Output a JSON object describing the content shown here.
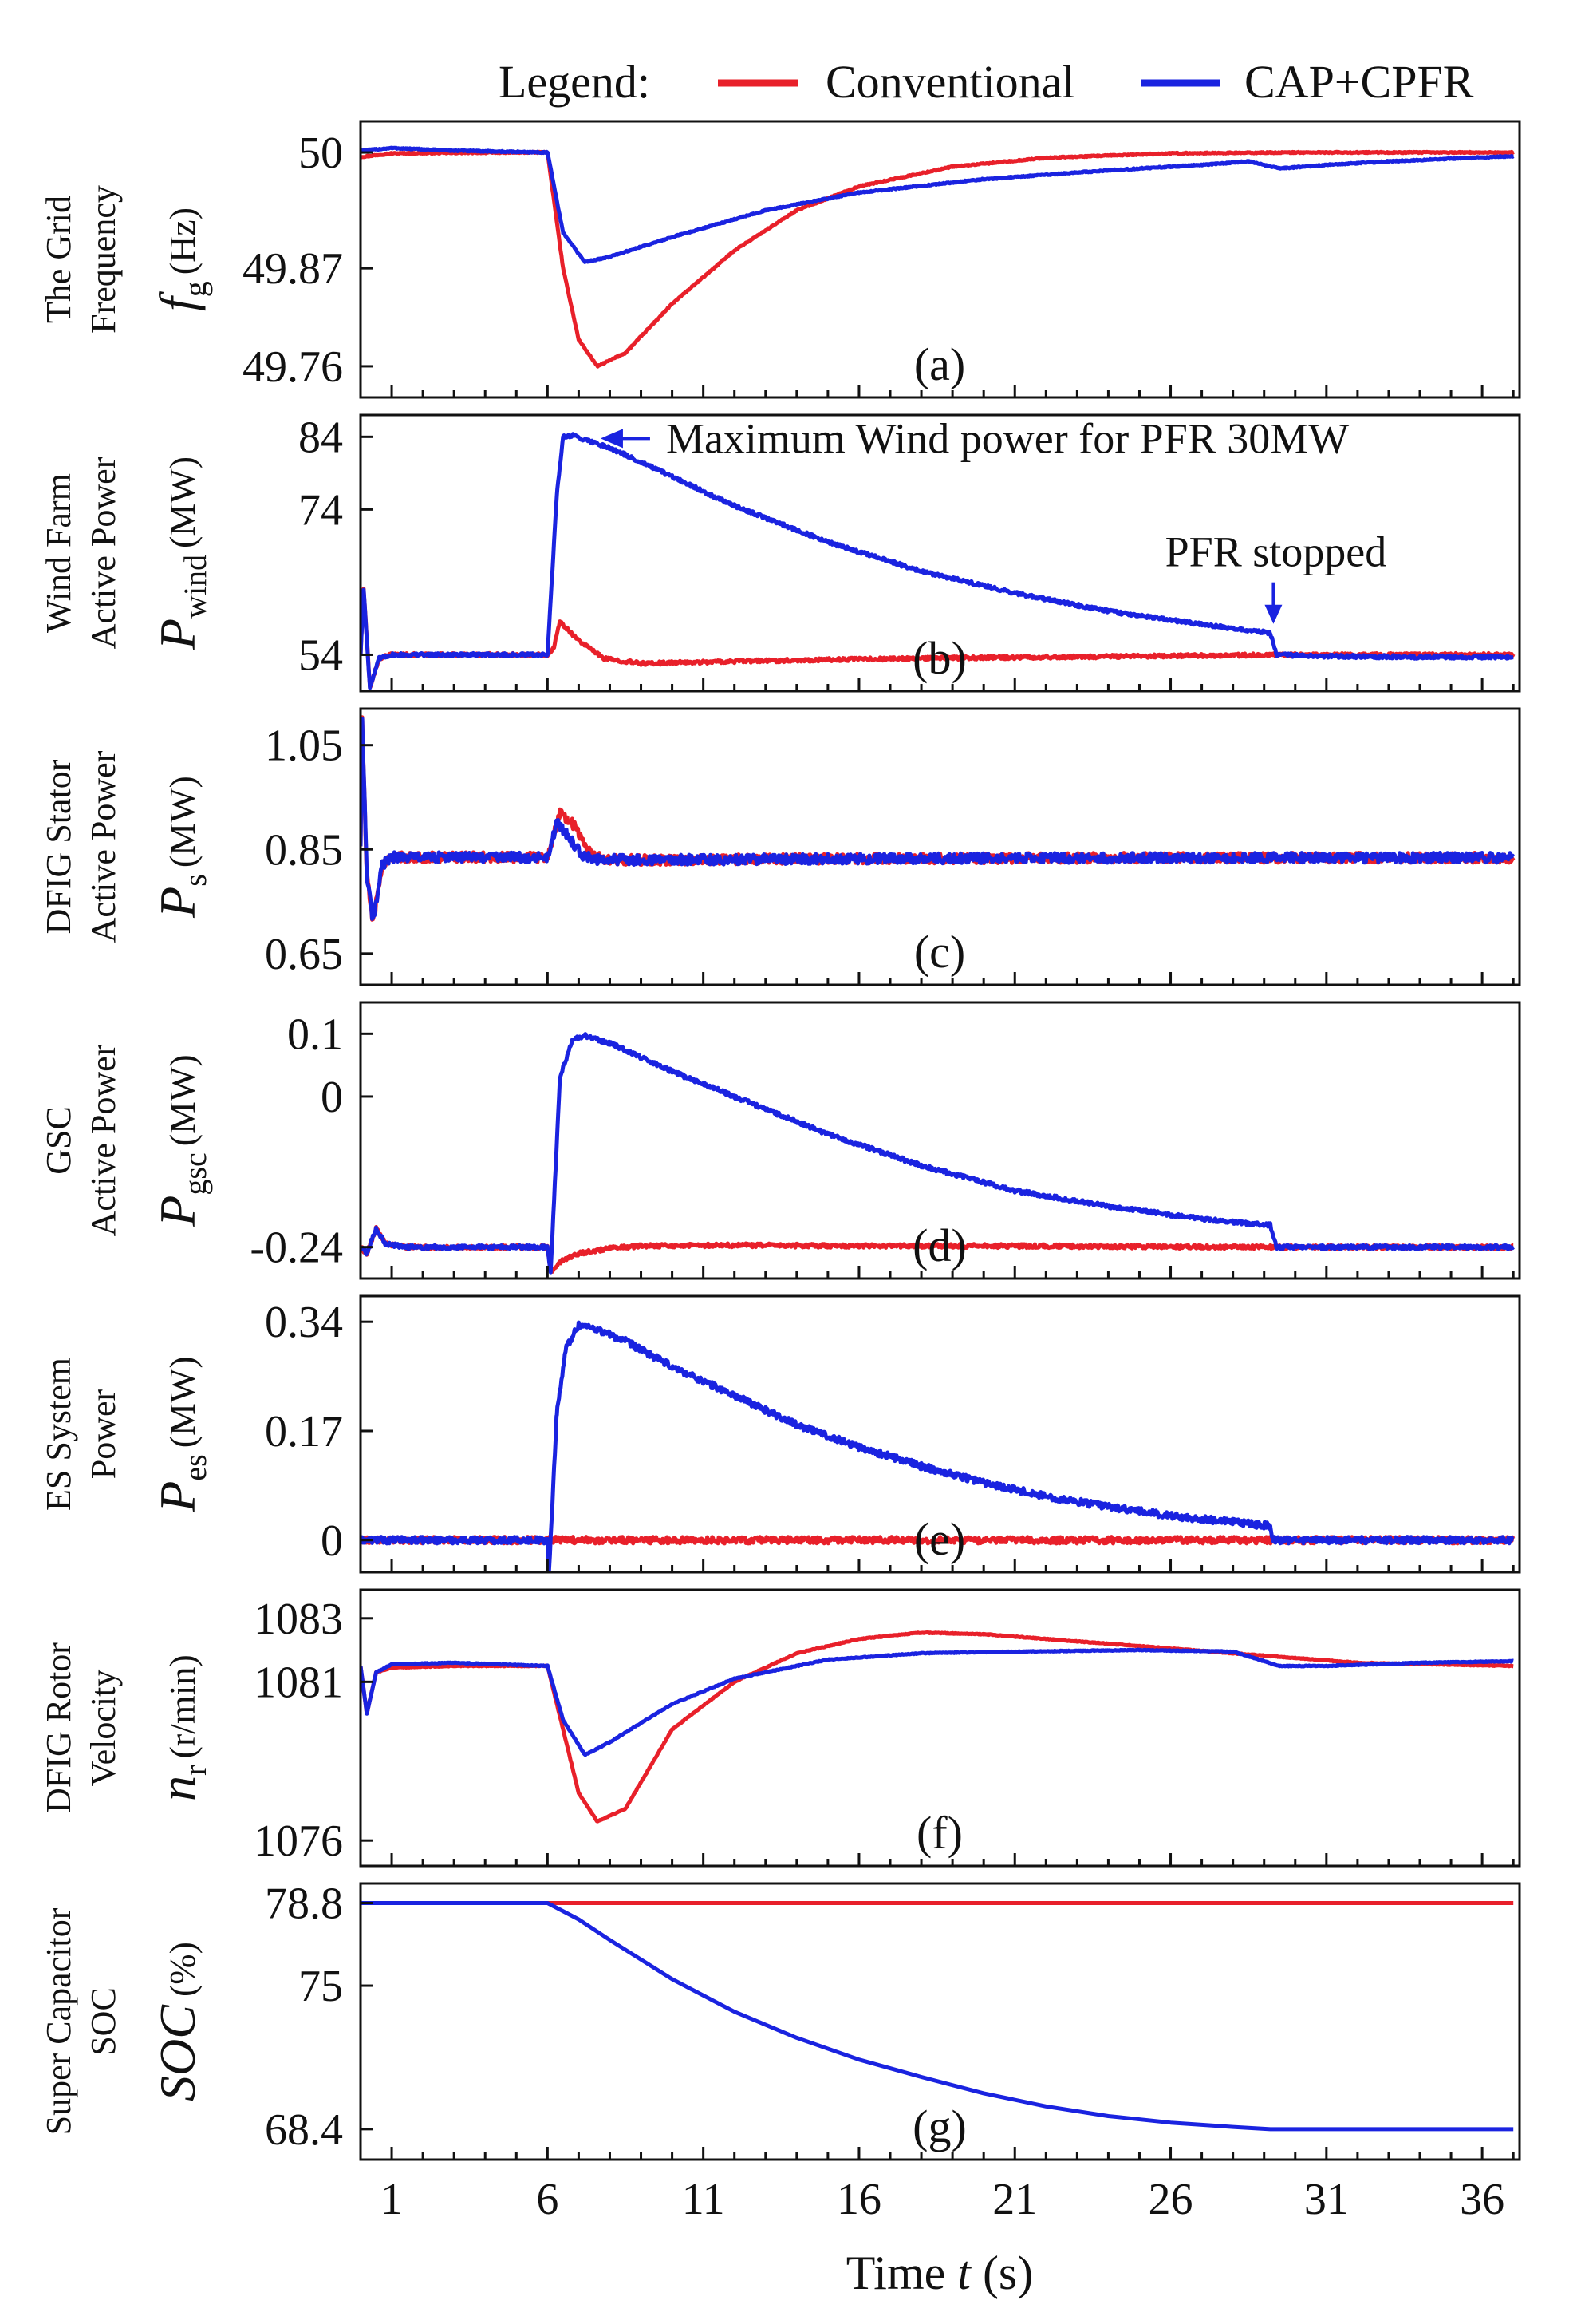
{
  "legend": {
    "title": "Legend:",
    "series": [
      {
        "name": "Conventional",
        "color": "#e8202a"
      },
      {
        "name": "CAP+CPFR",
        "color": "#1a23e0"
      }
    ]
  },
  "x_axis": {
    "label": "Time t (s)",
    "label_main": "Time ",
    "label_sym": "t",
    "label_unit": " (s)",
    "ticks": [
      1,
      6,
      11,
      16,
      21,
      26,
      31,
      36
    ],
    "range": [
      0,
      37.2
    ]
  },
  "chart_data": [
    {
      "id": "a",
      "type": "line",
      "tag": "(a)",
      "title_lines": [
        "The Grid",
        "Frequency"
      ],
      "symbol": "f",
      "subscript": "g",
      "unit": "(Hz)",
      "yticks": [
        49.76,
        49.87,
        50
      ],
      "ylim": [
        49.725,
        50.035
      ],
      "series": [
        {
          "name": "Conventional",
          "x": [
            0,
            1,
            5,
            6,
            6.5,
            7,
            7.6,
            8.5,
            10,
            12,
            14,
            16,
            19,
            22,
            26,
            30,
            34,
            37
          ],
          "values": [
            49.995,
            49.999,
            50.0,
            50.0,
            49.87,
            49.79,
            49.76,
            49.775,
            49.83,
            49.89,
            49.935,
            49.962,
            49.984,
            49.994,
            49.999,
            50.0,
            50.0,
            50.0
          ]
        },
        {
          "name": "CAP+CPFR",
          "x": [
            0,
            1,
            3,
            6,
            6.5,
            7.2,
            8,
            10,
            13,
            16,
            20,
            24,
            27,
            28.5,
            29.5,
            31,
            33,
            35,
            37
          ],
          "values": [
            50.002,
            50.005,
            50.002,
            50.0,
            49.91,
            49.877,
            49.883,
            49.905,
            49.935,
            49.955,
            49.97,
            49.98,
            49.986,
            49.99,
            49.982,
            49.986,
            49.99,
            49.993,
            49.996
          ]
        }
      ]
    },
    {
      "id": "b",
      "type": "line",
      "tag": "(b)",
      "title_lines": [
        "Wind Farm",
        "Active Power"
      ],
      "symbol": "P",
      "subscript": "wind",
      "unit": "(MW)",
      "yticks": [
        54,
        74,
        84
      ],
      "ylim": [
        49,
        87
      ],
      "annotations": [
        "Maximum Wind power for PFR 30MW",
        "PFR stopped"
      ],
      "series": [
        {
          "name": "Conventional",
          "x": [
            0,
            0.1,
            0.3,
            0.6,
            1,
            3,
            6,
            6.2,
            6.4,
            7,
            7.8,
            9,
            12,
            16,
            20,
            25,
            29.5,
            33,
            37
          ],
          "values": [
            54,
            63,
            49.5,
            53.5,
            54,
            54,
            54,
            55,
            58.5,
            56,
            53.5,
            52.8,
            53.1,
            53.4,
            53.6,
            53.8,
            54,
            54,
            54
          ]
        },
        {
          "name": "CAP+CPFR",
          "x": [
            0,
            0.1,
            0.3,
            0.6,
            1,
            3,
            6,
            6.3,
            6.5,
            6.8,
            8,
            10,
            12,
            15,
            18,
            21,
            24,
            27,
            29.2,
            29.4,
            31,
            34,
            37
          ],
          "values": [
            54,
            63,
            49.5,
            53.5,
            54,
            54,
            54,
            76,
            84,
            84.2,
            82.5,
            78.5,
            74.5,
            69.5,
            65.5,
            62.5,
            60,
            58.2,
            57,
            54,
            53.8,
            53.7,
            53.7
          ]
        }
      ]
    },
    {
      "id": "c",
      "type": "line",
      "tag": "(c)",
      "title_lines": [
        "DFIG Stator",
        "Active Power"
      ],
      "symbol": "P",
      "subscript": "s",
      "unit": "(MW)",
      "yticks": [
        0.65,
        0.85,
        1.05
      ],
      "ylim": [
        0.59,
        1.12
      ],
      "series": [
        {
          "name": "Conventional",
          "x": [
            0,
            0.05,
            0.2,
            0.4,
            0.7,
            1,
            3,
            6,
            6.4,
            6.8,
            7.4,
            8,
            10,
            15,
            20,
            25,
            30,
            37
          ],
          "values": [
            0.86,
            1.1,
            0.8,
            0.71,
            0.82,
            0.835,
            0.835,
            0.835,
            0.92,
            0.9,
            0.84,
            0.83,
            0.83,
            0.832,
            0.833,
            0.834,
            0.834,
            0.834
          ]
        },
        {
          "name": "CAP+CPFR",
          "x": [
            0,
            0.05,
            0.2,
            0.4,
            0.7,
            1,
            3,
            6,
            6.3,
            6.6,
            7.1,
            7.6,
            8.5,
            10,
            15,
            20,
            25,
            30,
            37
          ],
          "values": [
            0.86,
            1.1,
            0.8,
            0.71,
            0.82,
            0.835,
            0.835,
            0.835,
            0.9,
            0.88,
            0.84,
            0.83,
            0.83,
            0.83,
            0.832,
            0.833,
            0.834,
            0.834,
            0.834
          ]
        }
      ]
    },
    {
      "id": "d",
      "type": "line",
      "tag": "(d)",
      "title_lines": [
        "GSC",
        "Active Power"
      ],
      "symbol": "P",
      "subscript": "gsc",
      "unit": "(MW)",
      "yticks": [
        -0.24,
        0,
        0.1
      ],
      "ylim": [
        -0.29,
        0.15
      ],
      "series": [
        {
          "name": "Conventional",
          "x": [
            0,
            0.2,
            0.5,
            0.8,
            1.5,
            3,
            6,
            6.1,
            6.5,
            7,
            8,
            9,
            12,
            16,
            20,
            25,
            29.5,
            33,
            37
          ],
          "values": [
            -0.24,
            -0.25,
            -0.21,
            -0.235,
            -0.24,
            -0.24,
            -0.24,
            -0.28,
            -0.26,
            -0.25,
            -0.242,
            -0.238,
            -0.237,
            -0.238,
            -0.238,
            -0.239,
            -0.24,
            -0.24,
            -0.24
          ]
        },
        {
          "name": "CAP+CPFR",
          "x": [
            0,
            0.2,
            0.5,
            0.8,
            1.5,
            3,
            6,
            6.1,
            6.4,
            6.8,
            7.2,
            8,
            10,
            12,
            15,
            18,
            21,
            24,
            27,
            29.2,
            29.4,
            31,
            34,
            37
          ],
          "values": [
            -0.24,
            -0.25,
            -0.21,
            -0.235,
            -0.24,
            -0.24,
            -0.24,
            -0.28,
            0.03,
            0.09,
            0.097,
            0.085,
            0.04,
            0.0,
            -0.06,
            -0.11,
            -0.15,
            -0.175,
            -0.195,
            -0.205,
            -0.24,
            -0.24,
            -0.24,
            -0.24
          ]
        }
      ]
    },
    {
      "id": "e",
      "type": "line",
      "tag": "(e)",
      "title_lines": [
        "ES System",
        "Power"
      ],
      "symbol": "P",
      "subscript": "es",
      "unit": "(MW)",
      "yticks": [
        0,
        0.17,
        0.34
      ],
      "ylim": [
        -0.05,
        0.38
      ],
      "series": [
        {
          "name": "Conventional",
          "x": [
            0,
            37
          ],
          "values": [
            0,
            0
          ]
        },
        {
          "name": "CAP+CPFR",
          "x": [
            0,
            6,
            6.05,
            6.3,
            6.6,
            7,
            7.5,
            8.5,
            10,
            12,
            14,
            16,
            18,
            20,
            22,
            24,
            26,
            28,
            29.2,
            29.3,
            37
          ],
          "values": [
            0,
            0,
            -0.05,
            0.2,
            0.3,
            0.335,
            0.33,
            0.31,
            0.27,
            0.225,
            0.18,
            0.145,
            0.115,
            0.09,
            0.068,
            0.052,
            0.038,
            0.028,
            0.022,
            0,
            0
          ]
        }
      ]
    },
    {
      "id": "f",
      "type": "line",
      "tag": "(f)",
      "title_lines": [
        "DFIG Rotor",
        "Velocity"
      ],
      "symbol": "n",
      "subscript": "r",
      "unit": "(r/min)",
      "yticks": [
        1076,
        1081,
        1083
      ],
      "ylim": [
        1075.2,
        1083.9
      ],
      "series": [
        {
          "name": "Conventional",
          "x": [
            0,
            0.2,
            0.5,
            1,
            3,
            6,
            6.5,
            7,
            7.6,
            8.5,
            10,
            12,
            14,
            16,
            18,
            20,
            24,
            28,
            32,
            37
          ],
          "values": [
            1081.5,
            1080,
            1081.3,
            1081.45,
            1081.5,
            1081.5,
            1079.5,
            1077.5,
            1076.6,
            1077,
            1079.5,
            1081,
            1081.9,
            1082.35,
            1082.55,
            1082.5,
            1082.2,
            1081.9,
            1081.6,
            1081.5
          ]
        },
        {
          "name": "CAP+CPFR",
          "x": [
            0,
            0.2,
            0.5,
            1,
            3,
            6,
            6.5,
            7.2,
            8,
            10,
            12,
            15,
            18,
            21,
            25,
            28,
            29.5,
            31,
            34,
            37
          ],
          "values": [
            1081.5,
            1080,
            1081.3,
            1081.55,
            1081.6,
            1081.5,
            1079.8,
            1078.7,
            1079.1,
            1080.3,
            1081.1,
            1081.7,
            1081.9,
            1081.95,
            1082,
            1081.95,
            1081.5,
            1081.5,
            1081.6,
            1081.65
          ]
        }
      ]
    },
    {
      "id": "g",
      "type": "line",
      "tag": "(g)",
      "title_lines": [
        "Super Capacitor",
        "SOC"
      ],
      "symbol": "SOC",
      "subscript": "",
      "unit": "(%)",
      "yticks": [
        68.4,
        75,
        78.8
      ],
      "ylim": [
        67,
        79.7
      ],
      "series": [
        {
          "name": "Conventional",
          "x": [
            0,
            37
          ],
          "values": [
            78.8,
            78.8
          ]
        },
        {
          "name": "CAP+CPFR",
          "x": [
            0,
            6,
            7,
            8,
            10,
            12,
            14,
            16,
            18,
            20,
            22,
            24,
            26,
            28,
            29.2,
            37
          ],
          "values": [
            78.8,
            78.8,
            78.05,
            77.1,
            75.3,
            73.8,
            72.6,
            71.6,
            70.8,
            70.05,
            69.45,
            69.0,
            68.7,
            68.5,
            68.4,
            68.4
          ]
        }
      ]
    }
  ]
}
